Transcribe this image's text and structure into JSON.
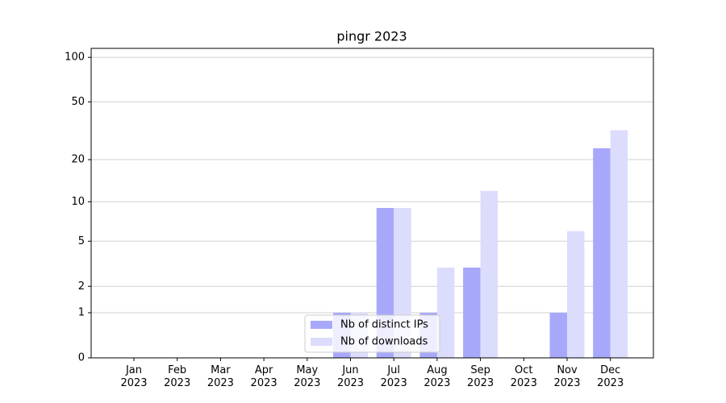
{
  "chart_data": {
    "type": "bar",
    "title": "pingr 2023",
    "categories": [
      "Jan\n2023",
      "Feb\n2023",
      "Mar\n2023",
      "Apr\n2023",
      "May\n2023",
      "Jun\n2023",
      "Jul\n2023",
      "Aug\n2023",
      "Sep\n2023",
      "Oct\n2023",
      "Nov\n2023",
      "Dec\n2023"
    ],
    "series": [
      {
        "name": "Nb of distinct IPs",
        "color": "#a8a8fb",
        "values": [
          0,
          0,
          0,
          0,
          0,
          1,
          9,
          1,
          3,
          0,
          1,
          24
        ]
      },
      {
        "name": "Nb of downloads",
        "color": "#dcdcfc",
        "values": [
          0,
          0,
          0,
          0,
          0,
          1,
          9,
          3,
          12,
          0,
          6,
          32
        ]
      }
    ],
    "yscale": "log1p",
    "ylim": [
      0,
      115
    ],
    "yticks": [
      0,
      1,
      2,
      5,
      10,
      20,
      50,
      100
    ],
    "grid": true,
    "legend": "lower center"
  }
}
